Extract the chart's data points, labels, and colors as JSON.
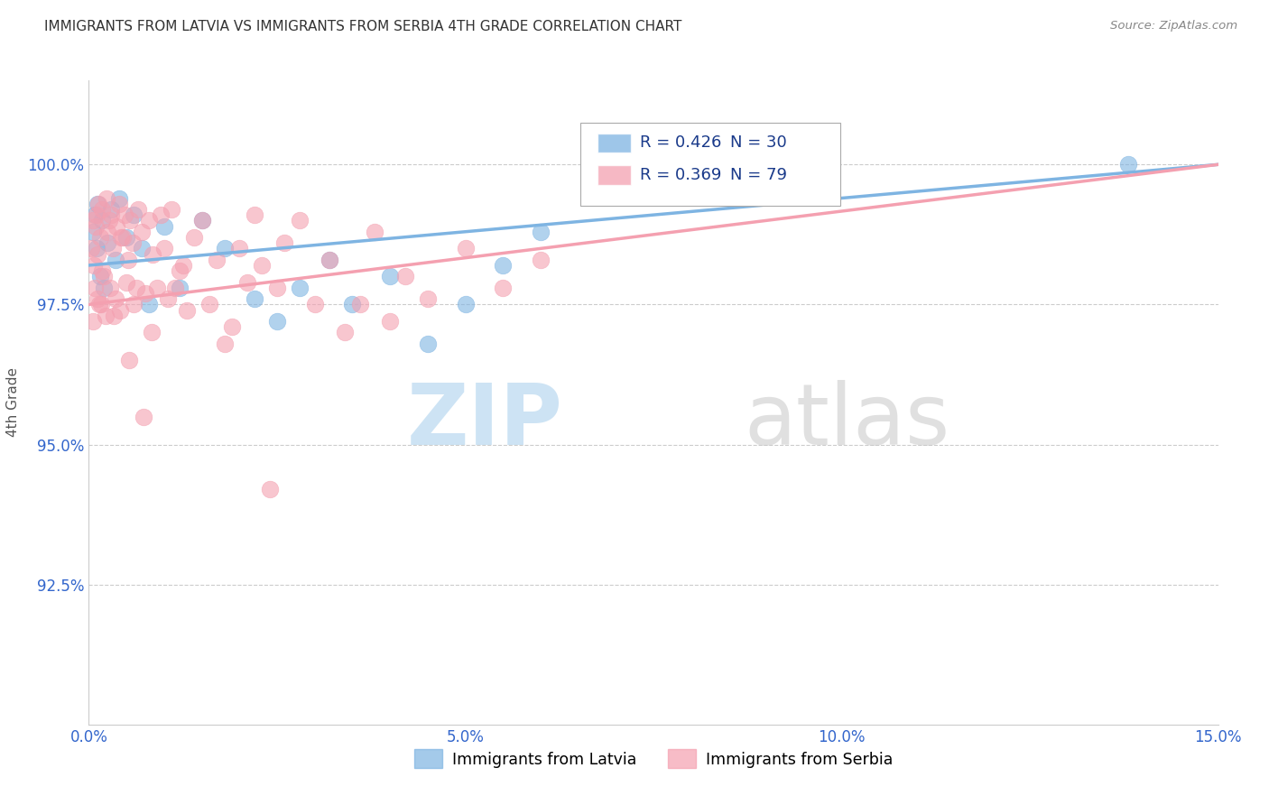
{
  "title": "IMMIGRANTS FROM LATVIA VS IMMIGRANTS FROM SERBIA 4TH GRADE CORRELATION CHART",
  "source": "Source: ZipAtlas.com",
  "ylabel": "4th Grade",
  "xlim": [
    0.0,
    15.0
  ],
  "ylim": [
    90.0,
    101.5
  ],
  "xtick_labels": [
    "0.0%",
    "5.0%",
    "10.0%",
    "15.0%"
  ],
  "xtick_vals": [
    0.0,
    5.0,
    10.0,
    15.0
  ],
  "ytick_labels": [
    "92.5%",
    "95.0%",
    "97.5%",
    "100.0%"
  ],
  "ytick_vals": [
    92.5,
    95.0,
    97.5,
    100.0
  ],
  "latvia_color": "#7EB4E2",
  "serbia_color": "#F4A0B0",
  "latvia_R": 0.426,
  "latvia_N": 30,
  "serbia_R": 0.369,
  "serbia_N": 79,
  "latvia_x": [
    0.05,
    0.08,
    0.1,
    0.12,
    0.15,
    0.18,
    0.2,
    0.25,
    0.3,
    0.35,
    0.4,
    0.5,
    0.6,
    0.7,
    0.8,
    1.0,
    1.2,
    1.5,
    1.8,
    2.2,
    2.5,
    2.8,
    3.2,
    3.5,
    4.0,
    4.5,
    5.0,
    5.5,
    6.0,
    13.8
  ],
  "latvia_y": [
    98.8,
    99.1,
    98.5,
    99.3,
    98.0,
    99.0,
    97.8,
    98.6,
    99.2,
    98.3,
    99.4,
    98.7,
    99.1,
    98.5,
    97.5,
    98.9,
    97.8,
    99.0,
    98.5,
    97.6,
    97.2,
    97.8,
    98.3,
    97.5,
    98.0,
    96.8,
    97.5,
    98.2,
    98.8,
    100.0
  ],
  "serbia_x": [
    0.03,
    0.05,
    0.07,
    0.08,
    0.1,
    0.11,
    0.12,
    0.13,
    0.15,
    0.16,
    0.18,
    0.2,
    0.22,
    0.25,
    0.27,
    0.28,
    0.3,
    0.32,
    0.35,
    0.37,
    0.4,
    0.42,
    0.45,
    0.48,
    0.5,
    0.52,
    0.55,
    0.58,
    0.6,
    0.65,
    0.7,
    0.75,
    0.8,
    0.85,
    0.9,
    0.95,
    1.0,
    1.05,
    1.1,
    1.2,
    1.3,
    1.4,
    1.5,
    1.6,
    1.7,
    1.8,
    1.9,
    2.0,
    2.1,
    2.2,
    2.3,
    2.5,
    2.6,
    2.8,
    3.0,
    3.2,
    3.4,
    3.6,
    3.8,
    4.0,
    4.2,
    4.5,
    5.0,
    5.5,
    6.0,
    0.06,
    0.09,
    0.14,
    0.17,
    0.23,
    0.33,
    0.43,
    0.53,
    0.63,
    0.73,
    0.83,
    1.15,
    1.25,
    2.4
  ],
  "serbia_y": [
    98.5,
    99.0,
    98.2,
    97.8,
    99.1,
    98.4,
    97.6,
    99.3,
    98.7,
    97.5,
    99.2,
    98.0,
    97.3,
    98.8,
    99.0,
    97.8,
    99.1,
    98.5,
    97.6,
    98.9,
    99.3,
    97.4,
    98.7,
    99.1,
    97.9,
    98.3,
    99.0,
    98.6,
    97.5,
    99.2,
    98.8,
    97.7,
    99.0,
    98.4,
    97.8,
    99.1,
    98.5,
    97.6,
    99.2,
    98.1,
    97.4,
    98.7,
    99.0,
    97.5,
    98.3,
    96.8,
    97.1,
    98.5,
    97.9,
    99.1,
    98.2,
    97.8,
    98.6,
    99.0,
    97.5,
    98.3,
    97.0,
    97.5,
    98.8,
    97.2,
    98.0,
    97.6,
    98.5,
    97.8,
    98.3,
    97.2,
    98.9,
    97.5,
    98.1,
    99.4,
    97.3,
    98.7,
    96.5,
    97.8,
    95.5,
    97.0,
    97.8,
    98.2,
    94.2
  ],
  "watermark_zip": "ZIP",
  "watermark_atlas": "atlas",
  "background_color": "#ffffff",
  "grid_color": "#cccccc",
  "title_color": "#333333",
  "axis_label_color": "#555555",
  "tick_color": "#3366cc",
  "legend_color": "#1a3a8a"
}
